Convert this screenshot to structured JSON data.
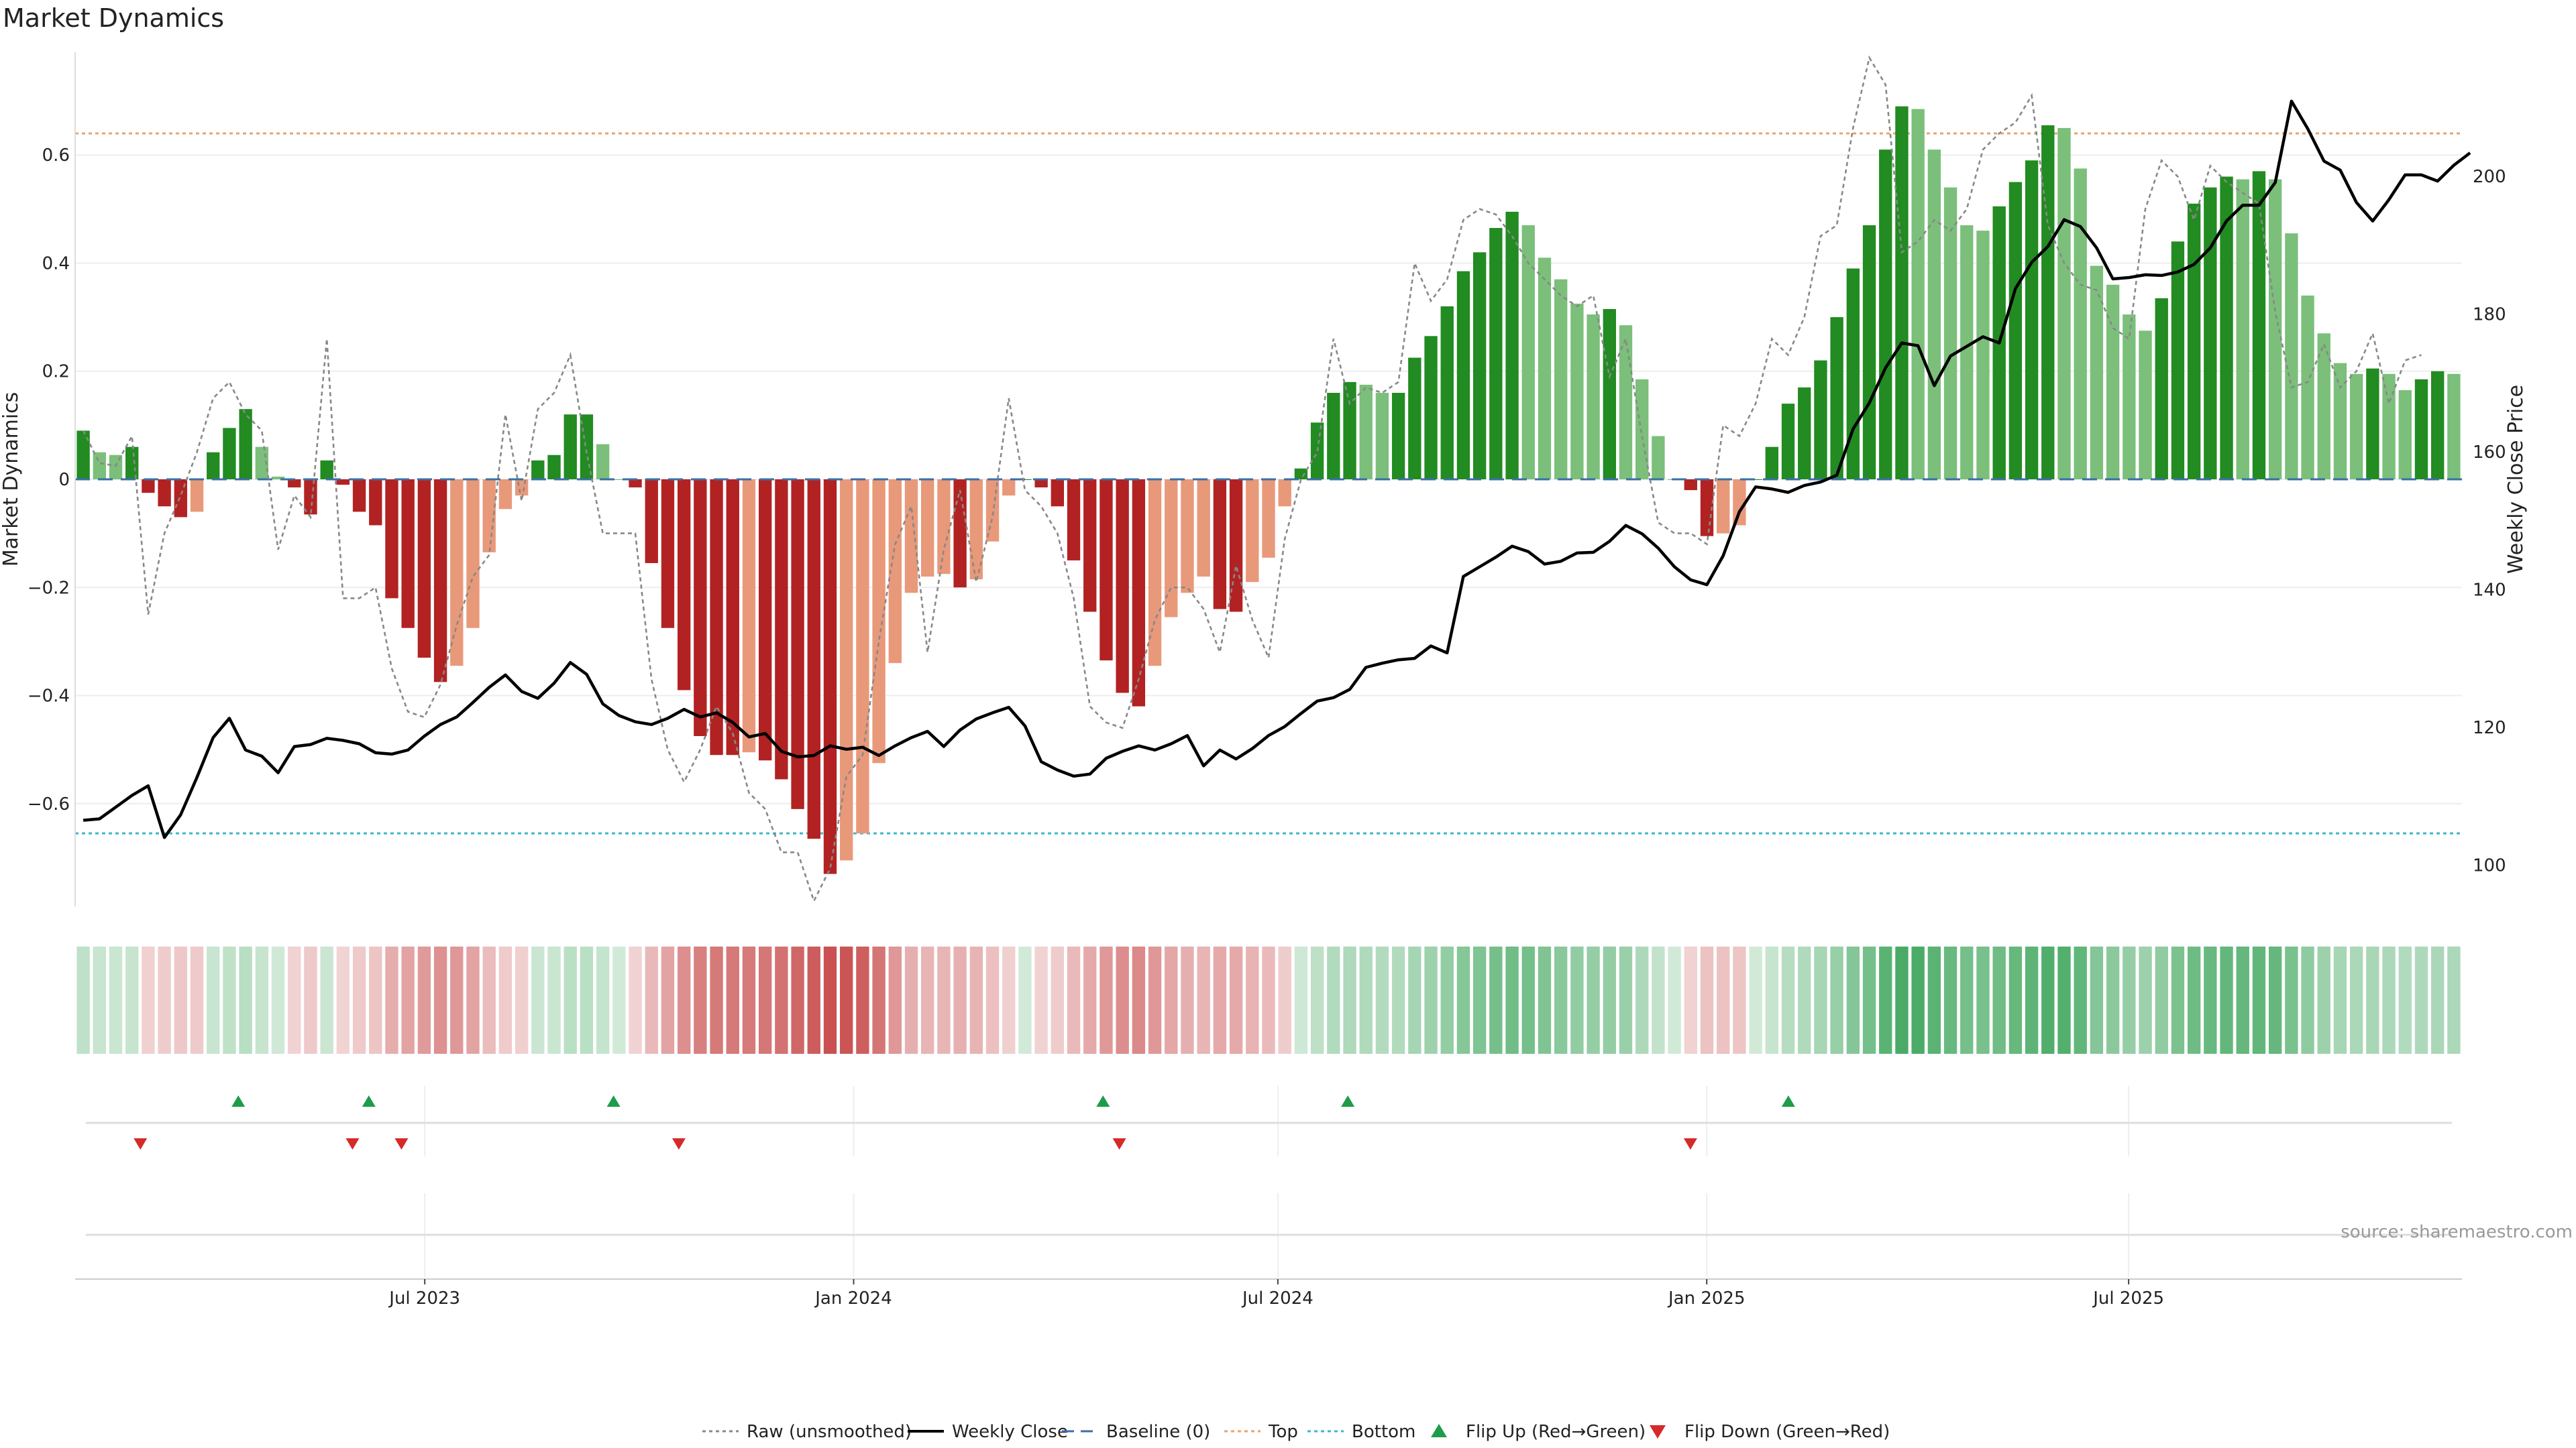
{
  "chart_data": {
    "type": "bar",
    "title": "Market Dynamics",
    "ylabel": "Market Dynamics",
    "y2label": "Weekly Close Price",
    "ylim": [
      -0.79,
      0.79
    ],
    "y2lim": [
      94,
      218
    ],
    "yticks": [
      "0.6",
      "0.4",
      "0.2",
      "0",
      "−0.2",
      "−0.4",
      "−0.6"
    ],
    "y2ticks": [
      "200",
      "180",
      "160",
      "140",
      "120",
      "100"
    ],
    "top_level": 0.64,
    "bottom_level": -0.655,
    "start_date": "2023-02-01",
    "end_date": "2025-11-21",
    "xticks": [
      "Jul 2023",
      "Jan 2024",
      "Jul 2024",
      "Jan 2025",
      "Jul 2025"
    ],
    "dynamics": [
      0.09,
      0.05,
      0.045,
      0.06,
      -0.025,
      -0.05,
      -0.07,
      -0.06,
      0.05,
      0.095,
      0.13,
      0.06,
      0.005,
      -0.015,
      -0.065,
      0.035,
      -0.01,
      -0.06,
      -0.085,
      -0.22,
      -0.275,
      -0.33,
      -0.375,
      -0.345,
      -0.275,
      -0.135,
      -0.055,
      -0.03,
      0.035,
      0.045,
      0.12,
      0.12,
      0.065,
      0.0,
      -0.015,
      -0.155,
      -0.275,
      -0.39,
      -0.475,
      -0.51,
      -0.51,
      -0.505,
      -0.52,
      -0.555,
      -0.61,
      -0.665,
      -0.73,
      -0.705,
      -0.655,
      -0.525,
      -0.34,
      -0.21,
      -0.18,
      -0.175,
      -0.2,
      -0.185,
      -0.115,
      -0.03,
      0.0,
      -0.015,
      -0.05,
      -0.15,
      -0.245,
      -0.335,
      -0.395,
      -0.42,
      -0.345,
      -0.255,
      -0.21,
      -0.18,
      -0.24,
      -0.245,
      -0.19,
      -0.145,
      -0.05,
      0.02,
      0.105,
      0.16,
      0.18,
      0.175,
      0.16,
      0.16,
      0.225,
      0.265,
      0.32,
      0.385,
      0.42,
      0.465,
      0.495,
      0.47,
      0.41,
      0.37,
      0.325,
      0.305,
      0.315,
      0.285,
      0.185,
      0.08,
      0.0,
      -0.02,
      -0.105,
      -0.1,
      -0.085,
      0.0,
      0.06,
      0.14,
      0.17,
      0.22,
      0.3,
      0.39,
      0.47,
      0.61,
      0.69,
      0.685,
      0.61,
      0.54,
      0.47,
      0.46,
      0.505,
      0.55,
      0.59,
      0.655,
      0.65,
      0.575,
      0.395,
      0.36,
      0.305,
      0.275,
      0.335,
      0.44,
      0.51,
      0.54,
      0.56,
      0.555,
      0.57,
      0.555,
      0.455,
      0.34,
      0.27,
      0.215,
      0.195,
      0.205,
      0.195,
      0.165,
      0.185,
      0.2,
      0.195
    ],
    "raw": [
      0.09,
      0.03,
      0.025,
      0.08,
      -0.25,
      -0.1,
      -0.03,
      0.05,
      0.15,
      0.18,
      0.12,
      0.09,
      -0.13,
      -0.03,
      -0.07,
      0.26,
      -0.22,
      -0.22,
      -0.2,
      -0.35,
      -0.43,
      -0.44,
      -0.38,
      -0.27,
      -0.18,
      -0.14,
      0.12,
      -0.04,
      0.13,
      0.16,
      0.23,
      0.05,
      -0.1,
      -0.1,
      -0.1,
      -0.37,
      -0.5,
      -0.56,
      -0.5,
      -0.42,
      -0.47,
      -0.58,
      -0.61,
      -0.69,
      -0.69,
      -0.78,
      -0.72,
      -0.55,
      -0.51,
      -0.3,
      -0.12,
      -0.05,
      -0.32,
      -0.13,
      -0.02,
      -0.19,
      -0.07,
      0.15,
      -0.02,
      -0.05,
      -0.1,
      -0.22,
      -0.42,
      -0.45,
      -0.46,
      -0.37,
      -0.26,
      -0.2,
      -0.2,
      -0.24,
      -0.32,
      -0.16,
      -0.26,
      -0.33,
      -0.11,
      0.0,
      0.05,
      0.26,
      0.14,
      0.17,
      0.16,
      0.18,
      0.4,
      0.33,
      0.37,
      0.48,
      0.5,
      0.49,
      0.45,
      0.4,
      0.37,
      0.34,
      0.32,
      0.34,
      0.19,
      0.26,
      0.08,
      -0.08,
      -0.1,
      -0.1,
      -0.12,
      0.1,
      0.08,
      0.14,
      0.26,
      0.23,
      0.3,
      0.45,
      0.47,
      0.65,
      0.78,
      0.73,
      0.42,
      0.44,
      0.48,
      0.46,
      0.5,
      0.61,
      0.64,
      0.66,
      0.71,
      0.47,
      0.4,
      0.36,
      0.35,
      0.28,
      0.26,
      0.5,
      0.59,
      0.56,
      0.48,
      0.58,
      0.55,
      0.53,
      0.51,
      0.31,
      0.17,
      0.18,
      0.25,
      0.17,
      0.2,
      0.27,
      0.14,
      0.22,
      0.23
    ],
    "weekly_close": [
      106.5,
      106.7,
      108.4,
      110.1,
      111.5,
      104,
      107.3,
      112.7,
      118.5,
      121.3,
      116.7,
      115.8,
      113.4,
      117.2,
      117.5,
      118.4,
      118.1,
      117.6,
      116.3,
      116.1,
      116.7,
      118.7,
      120.4,
      121.5,
      123.6,
      125.8,
      127.6,
      125.2,
      124.2,
      126.4,
      129.4,
      127.7,
      123.4,
      121.7,
      120.8,
      120.4,
      121.3,
      122.6,
      121.5,
      122.1,
      120.7,
      118.6,
      119.1,
      116.5,
      115.7,
      115.9,
      117.3,
      116.8,
      117.1,
      115.9,
      117.3,
      118.5,
      119.4,
      117.2,
      119.6,
      121.2,
      122.1,
      122.9,
      120.2,
      115,
      113.8,
      112.9,
      113.2,
      115.5,
      116.5,
      117.3,
      116.7,
      117.6,
      118.8,
      114.4,
      116.7,
      115.4,
      116.9,
      118.8,
      120.1,
      122,
      123.8,
      124.3,
      125.5,
      128.7,
      129.3,
      129.8,
      130,
      131.8,
      130.8,
      141.9,
      143.3,
      144.7,
      146.3,
      145.5,
      143.7,
      144.1,
      145.3,
      145.4,
      147,
      149.3,
      148.1,
      146,
      143.3,
      141.4,
      140.7,
      144.9,
      151.3,
      154.9,
      154.6,
      154.1,
      155.1,
      155.6,
      156.6,
      163.3,
      167.1,
      172.2,
      175.8,
      175.4,
      169.6,
      173.9,
      175.3,
      176.7,
      175.8,
      183.7,
      187.5,
      189.8,
      193.7,
      192.7,
      189.6,
      185.1,
      185.3,
      185.7,
      185.6,
      186.1,
      187.2,
      189.6,
      193.5,
      195.8,
      195.8,
      199.1,
      210.9,
      206.9,
      202.2,
      200.9,
      196.2,
      193.5,
      196.6,
      200.2,
      200.2,
      199.3,
      201.6,
      203.4
    ],
    "heat_band": "weekly strength strip",
    "flip_up": [
      "2023-04-12",
      "2023-06-07",
      "2023-09-20",
      "2024-04-17",
      "2024-07-31",
      "2025-02-05"
    ],
    "flip_down": [
      "2023-03-01",
      "2023-05-31",
      "2023-06-21",
      "2023-10-18",
      "2024-04-24",
      "2024-12-25"
    ],
    "legend_position": "bottom-center",
    "legend": [
      {
        "label": "Raw (unsmoothed)",
        "style": "dotted",
        "color": "#888888"
      },
      {
        "label": "Weekly Close",
        "style": "solid",
        "color": "#000000"
      },
      {
        "label": "Baseline (0)",
        "style": "dashed",
        "color": "#3a6fa8"
      },
      {
        "label": "Top",
        "style": "dotted",
        "color": "#e9a36b"
      },
      {
        "label": "Bottom",
        "style": "dotted",
        "color": "#3cb6c8"
      },
      {
        "label": "Flip Up (Red→Green)",
        "style": "marker-up",
        "color": "#1e9c4a"
      },
      {
        "label": "Flip Down (Green→Red)",
        "style": "marker-down",
        "color": "#d62a2a"
      }
    ],
    "source": "source: sharemaestro.com",
    "colors": {
      "pos_strong": "#228b22",
      "pos_weak": "#7bbf7b",
      "neg_strong": "#b22222",
      "neg_weak": "#e8997a",
      "band_green": "#2e9e4e",
      "band_red": "#c43e3e",
      "raw": "#888888",
      "close": "#000000",
      "baseline": "#3a6fa8",
      "top": "#e9a36b",
      "bottom": "#3cb6c8",
      "flip_up": "#1e9c4a",
      "flip_down": "#d62a2a"
    }
  }
}
